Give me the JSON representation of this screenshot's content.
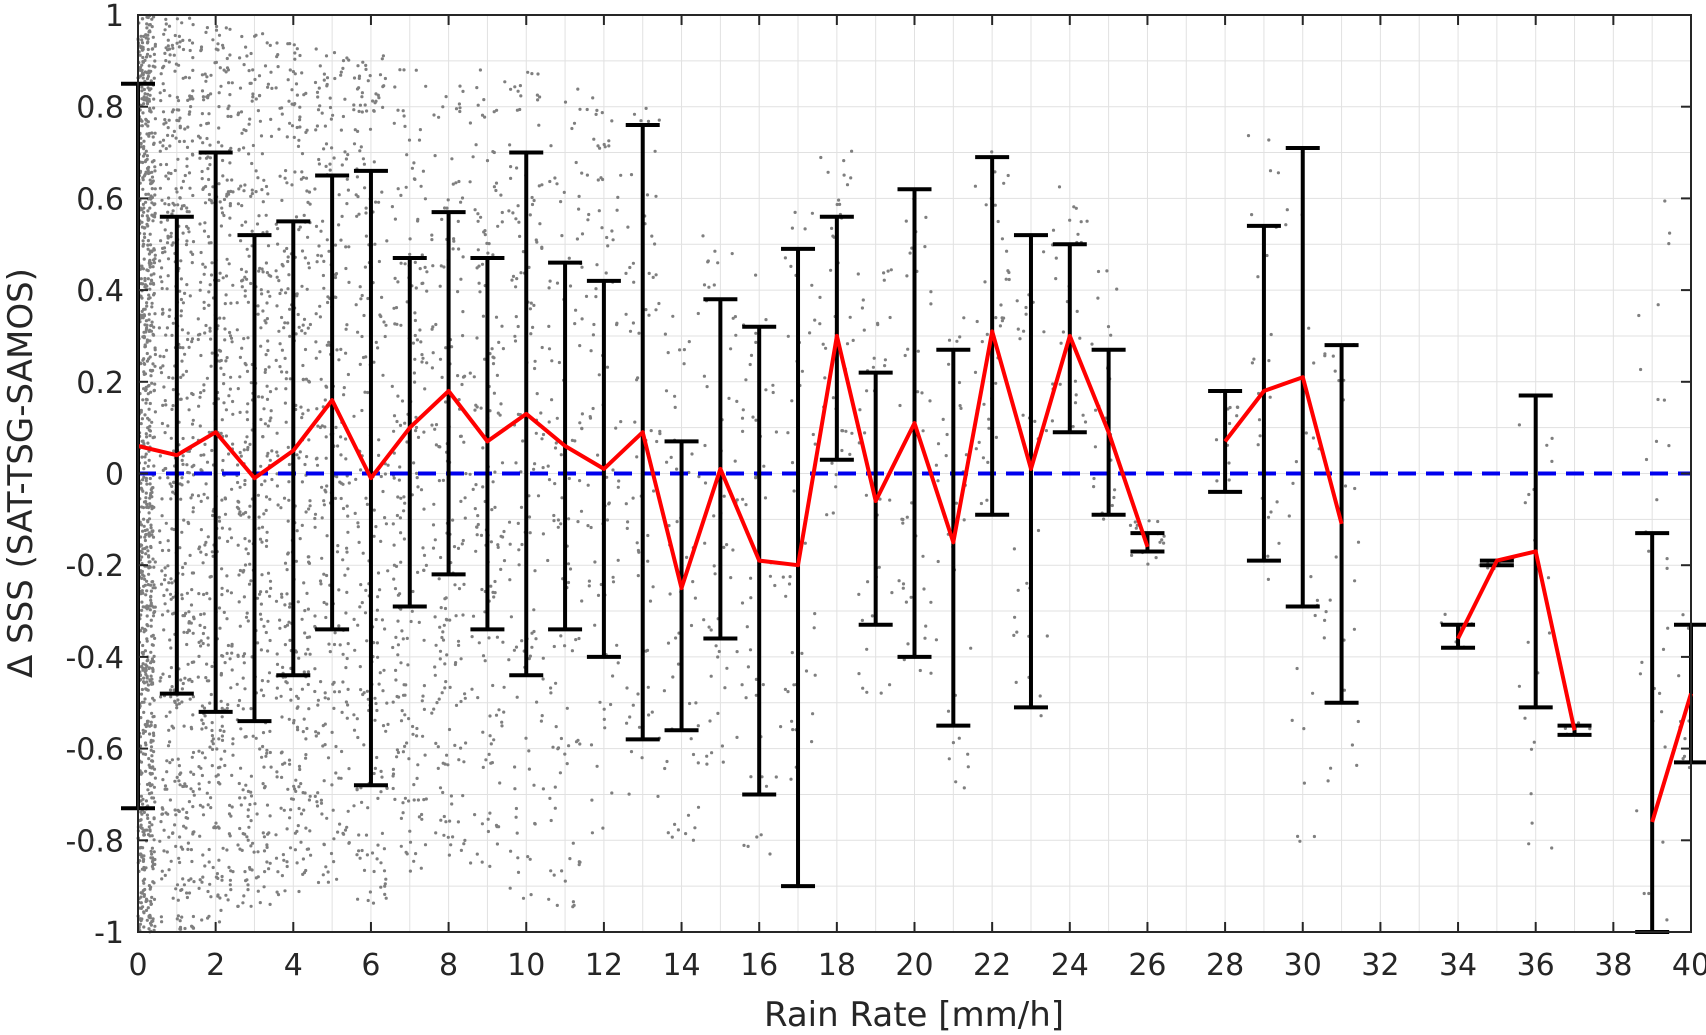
{
  "chart_data": {
    "type": "scatter",
    "xlabel": "Rain Rate [mm/h]",
    "ylabel": "Δ SSS (SAT-TSG-SAMOS)",
    "xlim": [
      0,
      40
    ],
    "ylim": [
      -1,
      1
    ],
    "grid": true,
    "x_ticks": [
      0,
      2,
      4,
      6,
      8,
      10,
      12,
      14,
      16,
      18,
      20,
      22,
      24,
      26,
      28,
      30,
      32,
      34,
      36,
      38,
      40
    ],
    "x_tick_labels": [
      "0",
      "2",
      "4",
      "6",
      "8",
      "10",
      "12",
      "14",
      "16",
      "18",
      "20",
      "22",
      "24",
      "26",
      "28",
      "30",
      "32",
      "34",
      "36",
      "38",
      "40"
    ],
    "y_ticks": [
      -1,
      -0.8,
      -0.6,
      -0.4,
      -0.2,
      0,
      0.2,
      0.4,
      0.6,
      0.8,
      1
    ],
    "y_tick_labels": [
      "-1",
      "-0.8",
      "-0.6",
      "-0.4",
      "-0.2",
      "0",
      "0.2",
      "0.4",
      "0.6",
      "0.8",
      "1"
    ],
    "reference_line": {
      "y": 0,
      "color": "#0000ee",
      "style": "dashed"
    },
    "scatter_color": "#7f7f7f",
    "errorbar_color": "#000000",
    "mean_line_color": "#ff0000",
    "series": [
      {
        "kind": "errorbar",
        "x": [
          0,
          1,
          2,
          3,
          4,
          5,
          6,
          7,
          8,
          9,
          10,
          11,
          12,
          13,
          14,
          15,
          16,
          17,
          18,
          19,
          20,
          21,
          22,
          23,
          24,
          25,
          26,
          28,
          29,
          30,
          31,
          34,
          35,
          36,
          37,
          39,
          40
        ],
        "mean": [
          0.06,
          0.04,
          0.09,
          -0.01,
          0.05,
          0.16,
          -0.01,
          0.1,
          0.18,
          0.07,
          0.13,
          0.06,
          0.01,
          0.09,
          -0.25,
          0.01,
          -0.19,
          -0.2,
          0.3,
          -0.06,
          0.11,
          -0.15,
          0.31,
          0.01,
          0.3,
          0.09,
          -0.16,
          0.07,
          0.18,
          0.21,
          -0.11,
          -0.36,
          -0.19,
          -0.17,
          -0.56,
          -0.76,
          -0.48
        ],
        "lower": [
          -0.73,
          -0.48,
          -0.52,
          -0.54,
          -0.44,
          -0.34,
          -0.68,
          -0.29,
          -0.22,
          -0.34,
          -0.44,
          -0.34,
          -0.4,
          -0.58,
          -0.56,
          -0.36,
          -0.7,
          -0.9,
          0.03,
          -0.33,
          -0.4,
          -0.55,
          -0.09,
          -0.51,
          0.09,
          -0.09,
          -0.17,
          -0.04,
          -0.19,
          -0.29,
          -0.5,
          -0.38,
          -0.2,
          -0.51,
          -0.57,
          -1.0,
          -0.63
        ],
        "upper": [
          0.85,
          0.56,
          0.7,
          0.52,
          0.55,
          0.65,
          0.66,
          0.47,
          0.57,
          0.47,
          0.7,
          0.46,
          0.42,
          0.76,
          0.07,
          0.38,
          0.32,
          0.49,
          0.56,
          0.22,
          0.62,
          0.27,
          0.69,
          0.52,
          0.5,
          0.27,
          -0.13,
          0.18,
          0.54,
          0.71,
          0.28,
          -0.33,
          -0.19,
          0.17,
          -0.55,
          -0.13,
          -0.33
        ],
        "mean_line_breaks_after": [
          26,
          31,
          37
        ]
      }
    ],
    "scatter_clusters": [
      {
        "x": 0,
        "ymin": -1.0,
        "ymax": 1.0,
        "n": 900
      },
      {
        "x": 1,
        "ymin": -1.0,
        "ymax": 1.0,
        "n": 500
      },
      {
        "x": 2,
        "ymin": -0.98,
        "ymax": 0.98,
        "n": 420
      },
      {
        "x": 3,
        "ymin": -0.95,
        "ymax": 0.96,
        "n": 360
      },
      {
        "x": 4,
        "ymin": -0.92,
        "ymax": 0.94,
        "n": 320
      },
      {
        "x": 5,
        "ymin": -0.9,
        "ymax": 0.93,
        "n": 260
      },
      {
        "x": 6,
        "ymin": -0.95,
        "ymax": 0.92,
        "n": 220
      },
      {
        "x": 7,
        "ymin": -0.88,
        "ymax": 0.9,
        "n": 200
      },
      {
        "x": 8,
        "ymin": -0.85,
        "ymax": 0.86,
        "n": 170
      },
      {
        "x": 9,
        "ymin": -0.88,
        "ymax": 0.88,
        "n": 150
      },
      {
        "x": 10,
        "ymin": -0.96,
        "ymax": 0.9,
        "n": 130
      },
      {
        "x": 11,
        "ymin": -0.95,
        "ymax": 0.85,
        "n": 110
      },
      {
        "x": 12,
        "ymin": -0.8,
        "ymax": 0.82,
        "n": 90
      },
      {
        "x": 13,
        "ymin": -0.75,
        "ymax": 0.8,
        "n": 70
      },
      {
        "x": 14,
        "ymin": -0.8,
        "ymax": 0.35,
        "n": 55
      },
      {
        "x": 15,
        "ymin": -0.65,
        "ymax": 0.55,
        "n": 55
      },
      {
        "x": 16,
        "ymin": -0.85,
        "ymax": 0.45,
        "n": 50
      },
      {
        "x": 17,
        "ymin": -0.7,
        "ymax": 0.6,
        "n": 45
      },
      {
        "x": 18,
        "ymin": -0.1,
        "ymax": 0.75,
        "n": 45
      },
      {
        "x": 19,
        "ymin": -0.5,
        "ymax": 0.45,
        "n": 40
      },
      {
        "x": 20,
        "ymin": -0.45,
        "ymax": 0.6,
        "n": 40
      },
      {
        "x": 21,
        "ymin": -0.7,
        "ymax": 0.35,
        "n": 35
      },
      {
        "x": 22,
        "ymin": -0.1,
        "ymax": 0.72,
        "n": 40
      },
      {
        "x": 23,
        "ymin": -0.55,
        "ymax": 0.52,
        "n": 30
      },
      {
        "x": 24,
        "ymin": 0.1,
        "ymax": 0.65,
        "n": 30
      },
      {
        "x": 25,
        "ymin": -0.1,
        "ymax": 0.45,
        "n": 25
      },
      {
        "x": 26,
        "ymin": -0.2,
        "ymax": -0.1,
        "n": 15
      },
      {
        "x": 28,
        "ymin": -0.05,
        "ymax": 0.2,
        "n": 12
      },
      {
        "x": 29,
        "ymin": -0.28,
        "ymax": 0.75,
        "n": 25
      },
      {
        "x": 30,
        "ymin": -0.92,
        "ymax": 0.7,
        "n": 25
      },
      {
        "x": 31,
        "ymin": -0.75,
        "ymax": 0.35,
        "n": 25
      },
      {
        "x": 34,
        "ymin": -0.38,
        "ymax": -0.3,
        "n": 8
      },
      {
        "x": 35,
        "ymin": -0.21,
        "ymax": -0.18,
        "n": 6
      },
      {
        "x": 36,
        "ymin": -0.82,
        "ymax": 0.2,
        "n": 20
      },
      {
        "x": 37,
        "ymin": -0.58,
        "ymax": -0.54,
        "n": 6
      },
      {
        "x": 39,
        "ymin": -1.0,
        "ymax": 0.78,
        "n": 30
      },
      {
        "x": 40,
        "ymin": -0.65,
        "ymax": -0.3,
        "n": 10
      }
    ]
  }
}
